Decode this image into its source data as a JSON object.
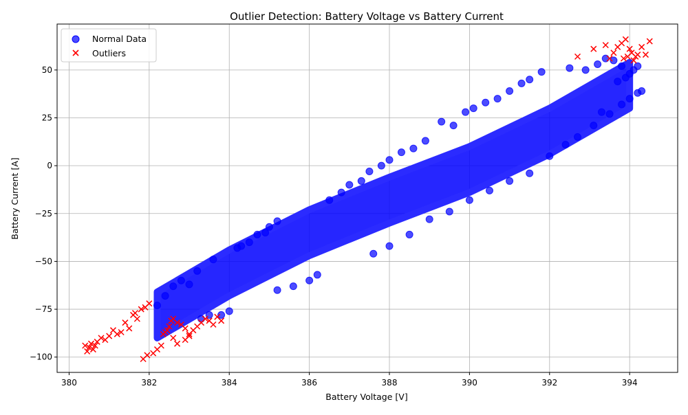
{
  "chart_data": {
    "type": "scatter",
    "title": "Outlier Detection: Battery Voltage vs Battery Current",
    "xlabel": "Battery Voltage [V]",
    "ylabel": "Battery Current [A]",
    "xlim": [
      379.7,
      395.2
    ],
    "ylim": [
      -108,
      74
    ],
    "xticks": [
      380,
      382,
      384,
      386,
      388,
      390,
      392,
      394
    ],
    "yticks": [
      -100,
      -75,
      -50,
      -25,
      0,
      25,
      50
    ],
    "grid": true,
    "legend_position": "upper-left",
    "series": [
      {
        "name": "Normal Data",
        "marker": "circle",
        "color": "#0000ff",
        "band_centerline": [
          [
            382.2,
            -78
          ],
          [
            384,
            -56
          ],
          [
            386,
            -35
          ],
          [
            388,
            -18
          ],
          [
            390,
            -2
          ],
          [
            392,
            18
          ],
          [
            394,
            42
          ]
        ],
        "band_half_width": 12,
        "points": [
          [
            382.2,
            -73
          ],
          [
            382.4,
            -68
          ],
          [
            382.6,
            -63
          ],
          [
            382.8,
            -60
          ],
          [
            383.0,
            -62
          ],
          [
            383.2,
            -55
          ],
          [
            383.3,
            -80
          ],
          [
            383.5,
            -78
          ],
          [
            383.6,
            -49
          ],
          [
            383.8,
            -78
          ],
          [
            384.0,
            -76
          ],
          [
            384.2,
            -43
          ],
          [
            384.3,
            -42
          ],
          [
            384.5,
            -40
          ],
          [
            384.7,
            -36
          ],
          [
            384.9,
            -35
          ],
          [
            385.0,
            -32
          ],
          [
            385.2,
            -29
          ],
          [
            385.2,
            -65
          ],
          [
            385.6,
            -63
          ],
          [
            386.0,
            -60
          ],
          [
            386.2,
            -57
          ],
          [
            386.5,
            -18
          ],
          [
            386.8,
            -14
          ],
          [
            387.0,
            -10
          ],
          [
            387.3,
            -8
          ],
          [
            387.5,
            -3
          ],
          [
            387.8,
            0
          ],
          [
            388.0,
            3
          ],
          [
            388.3,
            7
          ],
          [
            388.6,
            9
          ],
          [
            388.9,
            13
          ],
          [
            389.3,
            23
          ],
          [
            389.6,
            21
          ],
          [
            389.9,
            28
          ],
          [
            390.1,
            30
          ],
          [
            390.4,
            33
          ],
          [
            390.7,
            35
          ],
          [
            391.0,
            39
          ],
          [
            391.3,
            43
          ],
          [
            391.5,
            45
          ],
          [
            391.8,
            49
          ],
          [
            387.6,
            -46
          ],
          [
            388.0,
            -42
          ],
          [
            388.5,
            -36
          ],
          [
            389.0,
            -28
          ],
          [
            389.5,
            -24
          ],
          [
            390.0,
            -18
          ],
          [
            390.5,
            -13
          ],
          [
            391.0,
            -8
          ],
          [
            391.5,
            -4
          ],
          [
            392.0,
            5
          ],
          [
            392.4,
            11
          ],
          [
            392.7,
            15
          ],
          [
            392.5,
            51
          ],
          [
            392.9,
            50
          ],
          [
            393.2,
            53
          ],
          [
            393.4,
            56
          ],
          [
            393.6,
            55
          ],
          [
            393.8,
            52
          ],
          [
            393.5,
            27
          ],
          [
            393.8,
            32
          ],
          [
            393.1,
            21
          ],
          [
            393.3,
            28
          ],
          [
            394.0,
            35
          ],
          [
            394.2,
            38
          ],
          [
            394.3,
            39
          ],
          [
            394.1,
            50
          ],
          [
            394.2,
            52
          ],
          [
            394.0,
            48
          ],
          [
            393.9,
            46
          ],
          [
            393.7,
            44
          ]
        ]
      },
      {
        "name": "Outliers",
        "marker": "x",
        "color": "#ff0000",
        "points": [
          [
            380.4,
            -94
          ],
          [
            380.45,
            -97
          ],
          [
            380.5,
            -95
          ],
          [
            380.55,
            -93
          ],
          [
            380.6,
            -96
          ],
          [
            380.65,
            -94
          ],
          [
            380.7,
            -92
          ],
          [
            380.8,
            -90
          ],
          [
            380.9,
            -91
          ],
          [
            381.0,
            -89
          ],
          [
            381.1,
            -86
          ],
          [
            381.2,
            -88
          ],
          [
            381.3,
            -87
          ],
          [
            381.4,
            -82
          ],
          [
            381.5,
            -85
          ],
          [
            381.6,
            -78
          ],
          [
            381.65,
            -77
          ],
          [
            381.7,
            -80
          ],
          [
            381.8,
            -75
          ],
          [
            381.9,
            -74
          ],
          [
            382.0,
            -72
          ],
          [
            381.85,
            -101
          ],
          [
            381.95,
            -99
          ],
          [
            382.1,
            -98
          ],
          [
            382.2,
            -96
          ],
          [
            382.3,
            -94
          ],
          [
            382.35,
            -88
          ],
          [
            382.4,
            -87
          ],
          [
            382.45,
            -86
          ],
          [
            382.5,
            -84
          ],
          [
            382.55,
            -81
          ],
          [
            382.6,
            -80
          ],
          [
            382.7,
            -82
          ],
          [
            382.8,
            -83
          ],
          [
            382.9,
            -85
          ],
          [
            383.0,
            -88
          ],
          [
            383.1,
            -86
          ],
          [
            383.2,
            -84
          ],
          [
            383.3,
            -82
          ],
          [
            383.4,
            -80
          ],
          [
            383.5,
            -81
          ],
          [
            383.6,
            -83
          ],
          [
            383.7,
            -79
          ],
          [
            383.8,
            -81
          ],
          [
            382.6,
            -90
          ],
          [
            382.7,
            -93
          ],
          [
            382.9,
            -91
          ],
          [
            383.0,
            -89
          ],
          [
            392.7,
            57
          ],
          [
            393.1,
            61
          ],
          [
            393.4,
            63
          ],
          [
            393.6,
            59
          ],
          [
            393.7,
            62
          ],
          [
            393.8,
            64
          ],
          [
            393.9,
            66
          ],
          [
            393.95,
            57
          ],
          [
            394.0,
            61
          ],
          [
            394.05,
            59
          ],
          [
            394.1,
            55
          ],
          [
            394.2,
            58
          ],
          [
            394.3,
            62
          ],
          [
            394.4,
            58
          ],
          [
            394.5,
            65
          ],
          [
            393.5,
            56
          ],
          [
            393.85,
            56
          ],
          [
            394.15,
            57
          ]
        ]
      }
    ]
  }
}
